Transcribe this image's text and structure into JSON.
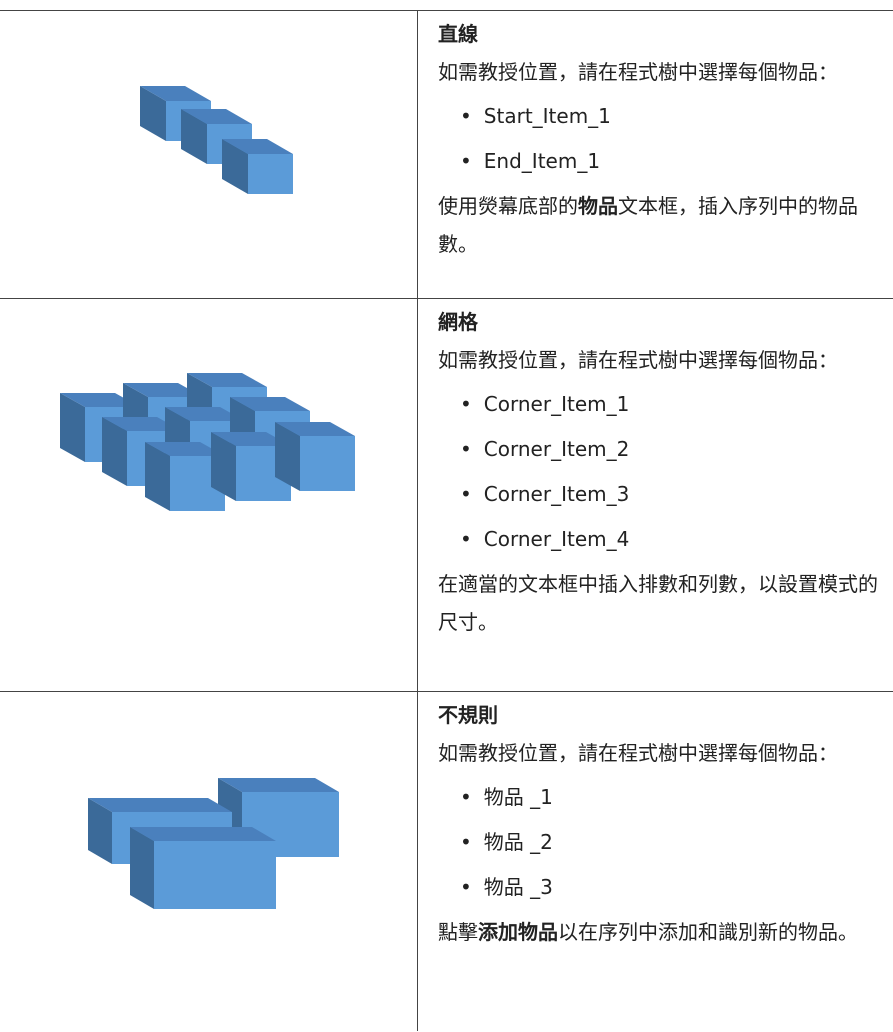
{
  "rows": [
    {
      "title": "直線",
      "intro": "如需教授位置，請在程式樹中選擇每個物品：",
      "items": [
        "Start_Item_1",
        "End_Item_1"
      ],
      "footer": [
        {
          "text": "使用熒幕底部的"
        },
        {
          "text": "物品",
          "bold": true
        },
        {
          "text": "文本框，插入序列中的物品數。"
        }
      ]
    },
    {
      "title": "網格",
      "intro": "如需教授位置，請在程式樹中選擇每個物品：",
      "items": [
        "Corner_Item_1",
        "Corner_Item_2",
        "Corner_Item_3",
        "Corner_Item_4"
      ],
      "footer": [
        {
          "text": "在適當的文本框中插入排數和列數，以設置模式的尺寸。"
        }
      ]
    },
    {
      "title": "不規則",
      "intro": "如需教授位置，請在程式樹中選擇每個物品：",
      "items": [
        "物品 _1",
        "物品 _2",
        "物品 _3"
      ],
      "footer": [
        {
          "text": "點擊"
        },
        {
          "text": "添加物品",
          "bold": true
        },
        {
          "text": "以在序列中添加和識別新的物品。"
        }
      ]
    }
  ]
}
